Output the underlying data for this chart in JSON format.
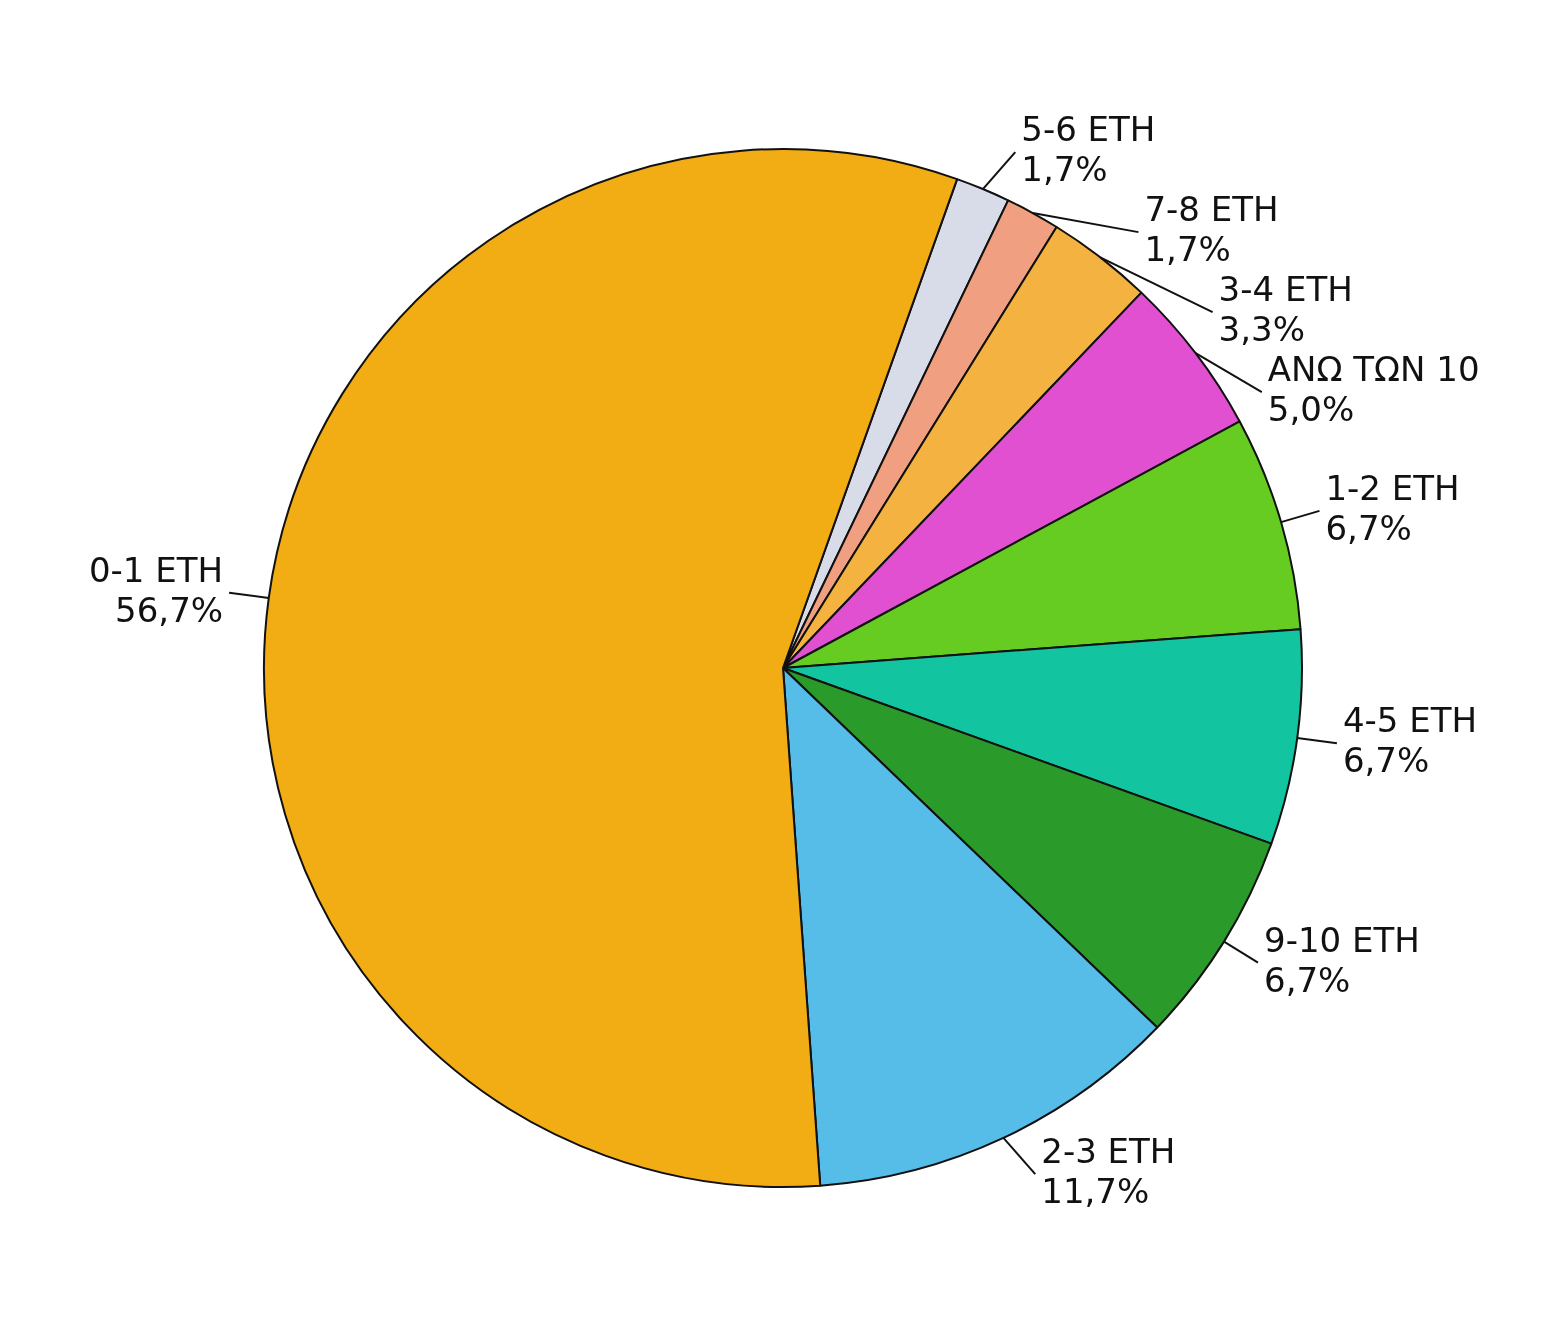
{
  "chart_data": {
    "type": "pie",
    "categories": [
      "5-6 ETH",
      "7-8 ETH",
      "3-4 ETH",
      "ΑΝΩ ΤΩΝ 10",
      "1-2 ETH",
      "4-5 ETH",
      "9-10 ETH",
      "2-3 ETH",
      "0-1 ETH"
    ],
    "values": [
      1.7,
      1.7,
      3.3,
      5.0,
      6.7,
      6.7,
      6.7,
      11.7,
      56.7
    ],
    "value_labels": [
      "1,7%",
      "1,7%",
      "3,3%",
      "5,0%",
      "6,7%",
      "6,7%",
      "6,7%",
      "11,7%",
      "56,7%"
    ],
    "colors": [
      "#d8dbe8",
      "#f0a080",
      "#f4b240",
      "#e050d0",
      "#66cc22",
      "#12c4a0",
      "#2a9a2a",
      "#55bde8",
      "#f2ad14"
    ],
    "legend": false
  }
}
